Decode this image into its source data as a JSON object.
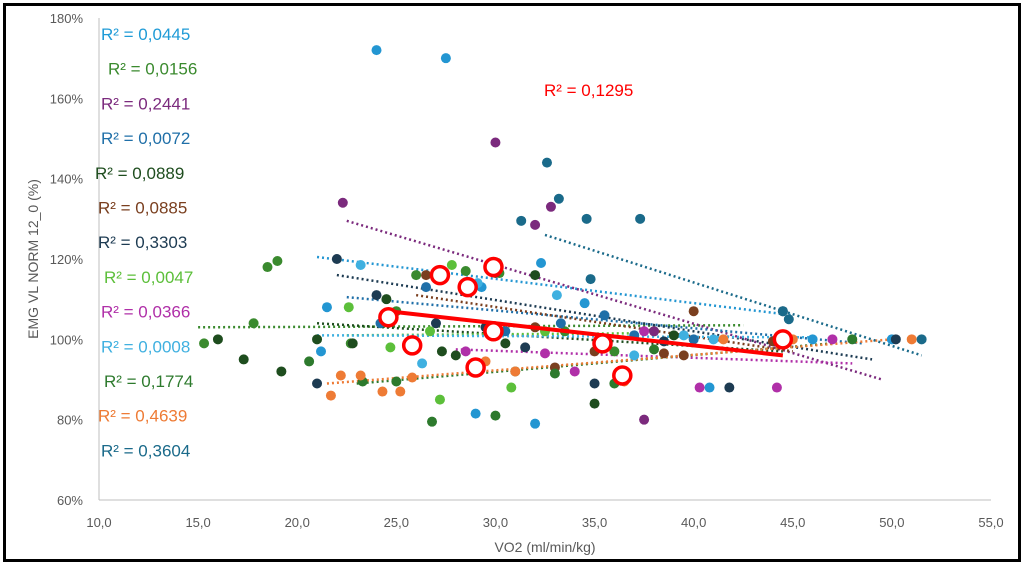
{
  "chart_data": {
    "type": "scatter",
    "title": "",
    "xlabel": "VO2 (ml/min/kg)",
    "ylabel": "EMG VL NORM 12_0 (%)",
    "xlim": [
      10,
      55
    ],
    "ylim": [
      60,
      180
    ],
    "x_ticks": [
      "10,0",
      "15,0",
      "20,0",
      "25,0",
      "30,0",
      "35,0",
      "40,0",
      "45,0",
      "50,0",
      "55,0"
    ],
    "y_ticks": [
      "60%",
      "80%",
      "100%",
      "120%",
      "140%",
      "160%",
      "180%"
    ],
    "grid": false,
    "legend": "none",
    "r2_labels": [
      {
        "text": "R² = 0,0445",
        "color": "#1f9bd7"
      },
      {
        "text": "R² = 0,0156",
        "color": "#3a8a2e"
      },
      {
        "text": "R² = 0,2441",
        "color": "#7b2a7d"
      },
      {
        "text": "R² = 0,0072",
        "color": "#1f6fa8"
      },
      {
        "text": "R² = 0,0889",
        "color": "#1e4d1e"
      },
      {
        "text": "R² = 0,0885",
        "color": "#7a3f1f"
      },
      {
        "text": "R² = 0,3303",
        "color": "#1d3b52"
      },
      {
        "text": "R² = 0,0047",
        "color": "#5cbf3a"
      },
      {
        "text": "R² = 0,0366",
        "color": "#b02fa8"
      },
      {
        "text": "R² = 0,0008",
        "color": "#3fb0e0"
      },
      {
        "text": "R² = 0,1774",
        "color": "#2d7a2d"
      },
      {
        "text": "R² = 0,4639",
        "color": "#ee7b35"
      },
      {
        "text": "R² = 0,3604",
        "color": "#1a6a8a"
      }
    ],
    "highlight_r2": {
      "text": "R² = 0,1295",
      "color": "#ff0000"
    },
    "series": [
      {
        "color": "#2396d2",
        "points": [
          [
            24,
            172
          ],
          [
            27.5,
            170
          ],
          [
            21.2,
            97
          ],
          [
            21.5,
            108
          ],
          [
            29,
            81.5
          ],
          [
            29.3,
            113
          ],
          [
            32,
            79
          ],
          [
            32.3,
            119
          ],
          [
            34.5,
            109
          ],
          [
            40.8,
            88
          ],
          [
            46,
            100
          ],
          [
            50,
            100
          ]
        ],
        "trend": [
          [
            21,
            120.5
          ],
          [
            45,
            106
          ]
        ]
      },
      {
        "color": "#3a8a2e",
        "points": [
          [
            15.3,
            99
          ],
          [
            17.8,
            104
          ],
          [
            18.5,
            118
          ],
          [
            19,
            119.5
          ],
          [
            22.7,
            99
          ],
          [
            25,
            107
          ],
          [
            26,
            116
          ],
          [
            28.5,
            117
          ],
          [
            30.2,
            116.5
          ],
          [
            33.5,
            102
          ],
          [
            36,
            97
          ],
          [
            38,
            102
          ]
        ],
        "trend": [
          [
            15,
            103
          ],
          [
            42.5,
            103.5
          ]
        ]
      },
      {
        "color": "#7b2a7d",
        "points": [
          [
            22.3,
            134
          ],
          [
            30,
            149
          ],
          [
            32,
            128.5
          ],
          [
            32.8,
            133
          ],
          [
            37.5,
            80
          ],
          [
            38,
            102
          ]
        ],
        "trend": [
          [
            22.5,
            129.5
          ],
          [
            49.5,
            90
          ]
        ]
      },
      {
        "color": "#1f6fa8",
        "points": [
          [
            24.2,
            104
          ],
          [
            26.5,
            113
          ],
          [
            30.5,
            102
          ],
          [
            33.3,
            104
          ],
          [
            35.5,
            106
          ],
          [
            37,
            101
          ],
          [
            40,
            100
          ]
        ],
        "trend": [
          [
            22.5,
            110.5
          ],
          [
            48.5,
            99
          ]
        ]
      },
      {
        "color": "#1e4d1e",
        "points": [
          [
            16,
            100
          ],
          [
            17.3,
            95
          ],
          [
            19.2,
            92
          ],
          [
            21,
            100
          ],
          [
            22.8,
            99
          ],
          [
            24.5,
            110
          ],
          [
            27.3,
            97
          ],
          [
            28,
            96
          ],
          [
            30.1,
            119
          ],
          [
            30.5,
            99
          ],
          [
            32,
            116
          ],
          [
            35,
            84
          ],
          [
            39,
            101
          ]
        ],
        "trend": [
          [
            21,
            104
          ],
          [
            44.5,
            97
          ]
        ]
      },
      {
        "color": "#7a3f1f",
        "points": [
          [
            26.5,
            116
          ],
          [
            30,
            116.5
          ],
          [
            32,
            103
          ],
          [
            33,
            93
          ],
          [
            35,
            97
          ],
          [
            38.5,
            96.5
          ],
          [
            39.5,
            96
          ],
          [
            40,
            107
          ],
          [
            44,
            99.5
          ]
        ],
        "trend": [
          [
            26,
            111
          ],
          [
            45,
            97
          ]
        ]
      },
      {
        "color": "#1d3b52",
        "points": [
          [
            21,
            89
          ],
          [
            22,
            120
          ],
          [
            24,
            111
          ],
          [
            27,
            104
          ],
          [
            29.5,
            103
          ],
          [
            31.5,
            98
          ],
          [
            35,
            89
          ],
          [
            38.5,
            99.5
          ],
          [
            41.8,
            88
          ],
          [
            44.5,
            107
          ],
          [
            50.2,
            100
          ]
        ],
        "trend": [
          [
            22,
            116
          ],
          [
            49,
            95
          ]
        ]
      },
      {
        "color": "#5cbf3a",
        "points": [
          [
            22.6,
            108
          ],
          [
            24.7,
            98
          ],
          [
            26.7,
            102
          ],
          [
            27.2,
            85
          ],
          [
            27.8,
            118.5
          ],
          [
            30.8,
            88
          ],
          [
            32.5,
            102
          ]
        ],
        "trend": [
          [
            22.5,
            101
          ],
          [
            37,
            101.5
          ]
        ]
      },
      {
        "color": "#b02fa8",
        "points": [
          [
            28.5,
            97
          ],
          [
            32.5,
            96.5
          ],
          [
            34,
            92
          ],
          [
            37.5,
            102
          ],
          [
            40.3,
            88
          ],
          [
            44.2,
            88
          ],
          [
            47,
            100
          ]
        ],
        "trend": [
          [
            28,
            97.5
          ],
          [
            48,
            94
          ]
        ]
      },
      {
        "color": "#3fb0e0",
        "points": [
          [
            23.2,
            118.5
          ],
          [
            26.3,
            94
          ],
          [
            29.1,
            114
          ],
          [
            33.1,
            111
          ],
          [
            37,
            96
          ],
          [
            39.5,
            101
          ],
          [
            41,
            100
          ]
        ],
        "trend": [
          [
            21,
            101
          ],
          [
            46,
            100.5
          ]
        ]
      },
      {
        "color": "#2d7a2d",
        "points": [
          [
            20.6,
            94.5
          ],
          [
            23.3,
            89.5
          ],
          [
            25,
            89.5
          ],
          [
            26.8,
            79.5
          ],
          [
            30,
            81
          ],
          [
            31,
            92
          ],
          [
            33,
            91.5
          ],
          [
            36,
            89
          ],
          [
            38,
            97.5
          ],
          [
            48,
            100
          ]
        ],
        "trend": [
          [
            23,
            89
          ],
          [
            47,
            99
          ]
        ]
      },
      {
        "color": "#ee7b35",
        "points": [
          [
            21.7,
            86
          ],
          [
            22.2,
            91
          ],
          [
            23.2,
            91
          ],
          [
            24.3,
            87
          ],
          [
            25.2,
            87
          ],
          [
            25.8,
            90.5
          ],
          [
            29.5,
            94.5
          ],
          [
            31,
            92
          ],
          [
            36.5,
            89.5
          ],
          [
            41.5,
            100
          ],
          [
            45,
            100
          ],
          [
            51,
            100
          ]
        ],
        "trend": [
          [
            21.5,
            89
          ],
          [
            50,
            100
          ]
        ]
      },
      {
        "color": "#1a6a8a",
        "points": [
          [
            31.3,
            129.5
          ],
          [
            32.6,
            144
          ],
          [
            33.2,
            135
          ],
          [
            34.6,
            130
          ],
          [
            34.8,
            115
          ],
          [
            37.3,
            130
          ],
          [
            44.5,
            107
          ],
          [
            44.8,
            105
          ],
          [
            51.5,
            100
          ]
        ],
        "trend": [
          [
            32.5,
            126
          ],
          [
            51.5,
            96
          ]
        ]
      }
    ],
    "highlight_points": [
      [
        24.6,
        105.5
      ],
      [
        25.8,
        98.5
      ],
      [
        27.2,
        116
      ],
      [
        28.6,
        113
      ],
      [
        29,
        93
      ],
      [
        29.9,
        118
      ],
      [
        29.9,
        102
      ],
      [
        35.4,
        99
      ],
      [
        36.4,
        91
      ],
      [
        44.5,
        100
      ]
    ],
    "highlight_trend": [
      [
        24.6,
        107
      ],
      [
        44.5,
        96
      ]
    ]
  }
}
